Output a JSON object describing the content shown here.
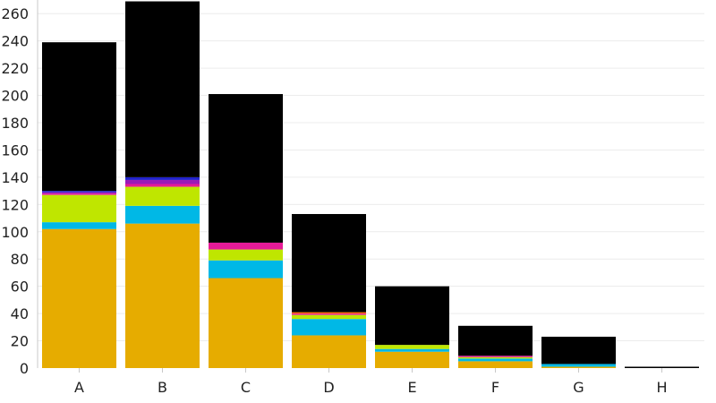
{
  "chart_data": {
    "type": "bar",
    "stacked": true,
    "title": "",
    "xlabel": "",
    "ylabel": "",
    "categories": [
      "A",
      "B",
      "C",
      "D",
      "E",
      "F",
      "G",
      "H"
    ],
    "ylim": [
      0,
      270
    ],
    "yticks": [
      0,
      20,
      40,
      60,
      80,
      100,
      120,
      140,
      160,
      180,
      200,
      220,
      240,
      260
    ],
    "grid": true,
    "legend": "none",
    "series": [
      {
        "color": "#e6ac00",
        "values": [
          102,
          106,
          66,
          24,
          12,
          5,
          1,
          0
        ]
      },
      {
        "color": "#00b8e6",
        "values": [
          5,
          13,
          13,
          12,
          2,
          2,
          2,
          0
        ]
      },
      {
        "color": "#bfe600",
        "values": [
          20,
          14,
          8,
          3,
          3,
          1,
          0,
          0
        ]
      },
      {
        "color": "#e61b98",
        "values": [
          1,
          2,
          5,
          1,
          0,
          1,
          0,
          0
        ]
      },
      {
        "color": "#9a1ab8",
        "values": [
          1,
          3,
          0,
          0,
          0,
          0,
          0,
          0
        ]
      },
      {
        "color": "#2222cc",
        "values": [
          1,
          2,
          0,
          0,
          0,
          0,
          0,
          0
        ]
      },
      {
        "color": "#ff6600",
        "values": [
          0,
          0,
          0,
          1,
          0,
          0,
          0,
          0
        ]
      },
      {
        "color": "#000000",
        "values": [
          109,
          129,
          109,
          72,
          43,
          22,
          20,
          1
        ]
      }
    ]
  }
}
